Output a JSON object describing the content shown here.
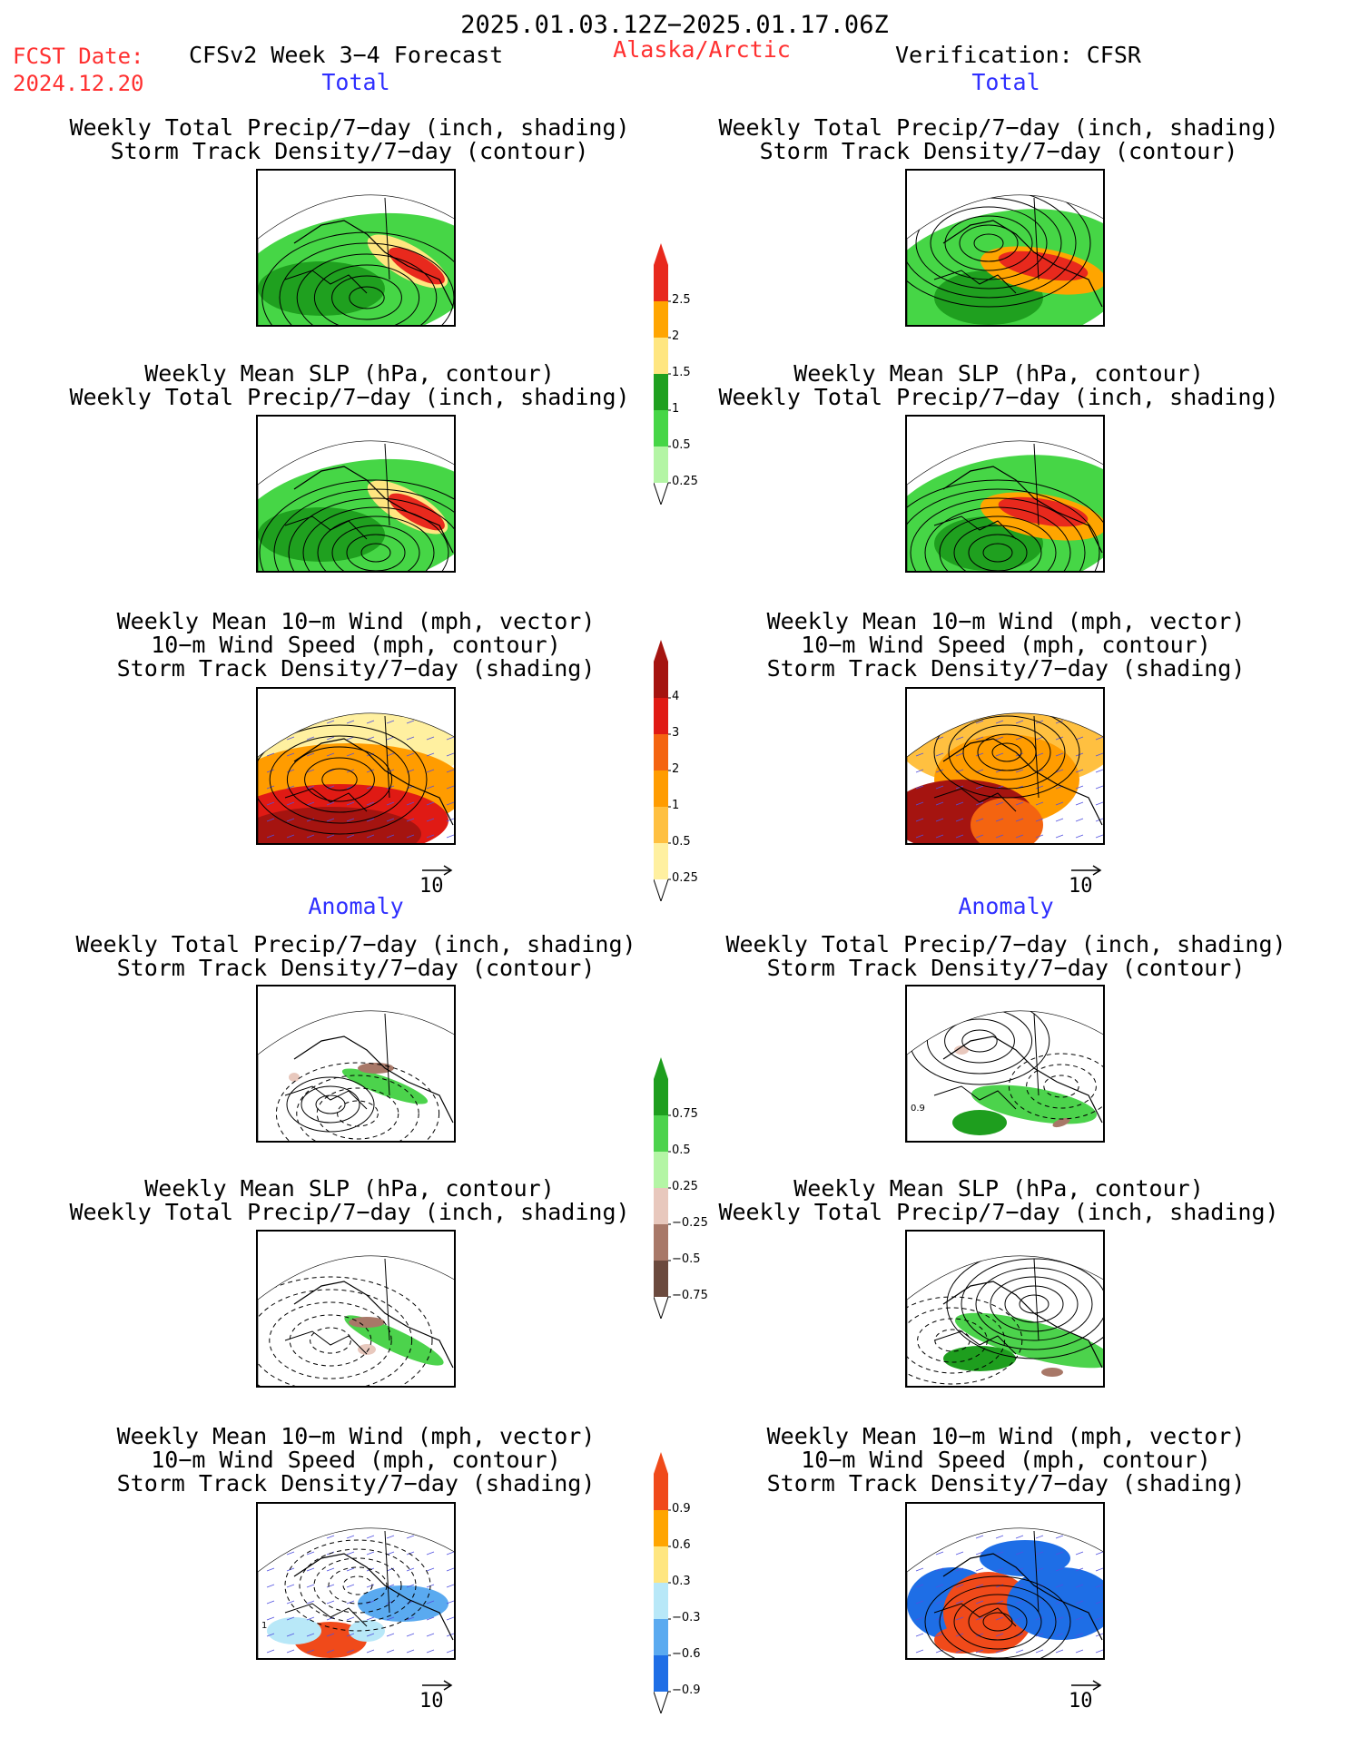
{
  "header": {
    "period": "2025.01.03.12Z−2025.01.17.06Z",
    "fcst_label": "FCST Date:",
    "fcst_date": "2024.12.20",
    "product": "CFSv2 Week 3−4 Forecast",
    "region": "Alaska/Arctic",
    "verification": "Verification: CFSR"
  },
  "sections": {
    "total": "Total",
    "anomaly": "Anomaly"
  },
  "captions": {
    "precip_storm": [
      "Weekly Total Precip/7−day (inch, shading)",
      "Storm Track Density/7−day (contour)"
    ],
    "slp_precip": [
      "Weekly Mean SLP (hPa, contour)",
      "Weekly Total Precip/7−day (inch, shading)"
    ],
    "wind": [
      "Weekly Mean 10−m Wind (mph, vector)",
      "10−m Wind Speed (mph, contour)",
      "Storm Track Density/7−day (shading)"
    ]
  },
  "reference_vector": "10",
  "panels": [
    {
      "id": "fcst-total-precip-storm",
      "column": "forecast",
      "section": "total",
      "variable": "precip_storm"
    },
    {
      "id": "verif-total-precip-storm",
      "column": "verification",
      "section": "total",
      "variable": "precip_storm"
    },
    {
      "id": "fcst-total-slp-precip",
      "column": "forecast",
      "section": "total",
      "variable": "slp_precip"
    },
    {
      "id": "verif-total-slp-precip",
      "column": "verification",
      "section": "total",
      "variable": "slp_precip"
    },
    {
      "id": "fcst-total-wind",
      "column": "forecast",
      "section": "total",
      "variable": "wind"
    },
    {
      "id": "verif-total-wind",
      "column": "verification",
      "section": "total",
      "variable": "wind"
    },
    {
      "id": "fcst-anom-precip-storm",
      "column": "forecast",
      "section": "anomaly",
      "variable": "precip_storm",
      "label": ""
    },
    {
      "id": "verif-anom-precip-storm",
      "column": "verification",
      "section": "anomaly",
      "variable": "precip_storm",
      "label": "0.9"
    },
    {
      "id": "fcst-anom-slp-precip",
      "column": "forecast",
      "section": "anomaly",
      "variable": "slp_precip"
    },
    {
      "id": "verif-anom-slp-precip",
      "column": "verification",
      "section": "anomaly",
      "variable": "slp_precip"
    },
    {
      "id": "fcst-anom-wind",
      "column": "forecast",
      "section": "anomaly",
      "variable": "wind",
      "label": "1"
    },
    {
      "id": "verif-anom-wind",
      "column": "verification",
      "section": "anomaly",
      "variable": "wind"
    }
  ],
  "colorbars": {
    "total_precip": {
      "labels": [
        "2.5",
        "2",
        "1.5",
        "1",
        "0.5",
        "0.25"
      ],
      "colors": [
        "#e8291d",
        "#ffa500",
        "#ffe680",
        "#1fa01f",
        "#46d646",
        "#b4f5a5"
      ]
    },
    "total_storm": {
      "labels": [
        "4",
        "3",
        "2",
        "1",
        "0.5",
        "0.25"
      ],
      "colors": [
        "#a51410",
        "#e01a14",
        "#f46410",
        "#ff9c00",
        "#ffc040",
        "#fff0a0"
      ]
    },
    "anom_precip": {
      "labels": [
        "0.75",
        "0.5",
        "0.25",
        "−0.25",
        "−0.5",
        "−0.75"
      ],
      "colors": [
        "#1e9e1e",
        "#4cd34c",
        "#b4f5a5",
        "#e8c8bd",
        "#a87868",
        "#6b4a3e"
      ]
    },
    "anom_storm": {
      "labels": [
        "0.9",
        "0.6",
        "0.3",
        "−0.3",
        "−0.6",
        "−0.9"
      ],
      "colors": [
        "#f04a1a",
        "#ffa500",
        "#ffe680",
        "#b8e8f8",
        "#5aaaf0",
        "#1e6ee6"
      ]
    }
  },
  "colors": {
    "header_red": "#ff3030",
    "section_blue": "#2f2fff"
  }
}
